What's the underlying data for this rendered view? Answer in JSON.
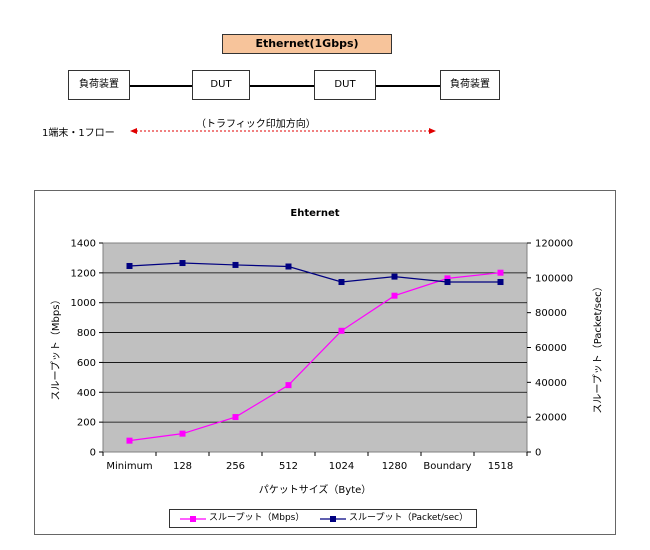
{
  "diagram": {
    "title": "Ethernet(1Gbps)",
    "nodes": [
      "負荷装置",
      "DUT",
      "DUT",
      "負荷装置"
    ],
    "direction_label": "（トラフィック印加方向）",
    "flow_label": "1端末・1フロー",
    "colors": {
      "title_fill": "#f7c49b",
      "arrow": "#e00000"
    }
  },
  "chart_data": {
    "type": "line",
    "title": "Ehternet",
    "xlabel": "パケットサイズ（Byte）",
    "ylabel": "スループット（Mbps）",
    "y2label": "スループット（Packet/sec）",
    "categories": [
      "Minimum",
      "128",
      "256",
      "512",
      "1024",
      "1280",
      "Boundary",
      "1518"
    ],
    "ylim": [
      0,
      1400
    ],
    "y_ticks": [
      "0",
      "200",
      "400",
      "600",
      "800",
      "1000",
      "1200",
      "1400"
    ],
    "y2lim": [
      0,
      120000
    ],
    "y2_ticks": [
      "0",
      "20000",
      "40000",
      "60000",
      "80000",
      "100000",
      "120000"
    ],
    "grid": "horizontal",
    "plot_background": "#c0c0c0",
    "legend_position": "bottom",
    "series": [
      {
        "name": "スループット（Mbps）",
        "axis": "left",
        "color": "#ff00ff",
        "values": [
          76,
          123,
          234,
          448,
          812,
          1047,
          1163,
          1201
        ]
      },
      {
        "name": "スループット（Packet/sec）",
        "axis": "right",
        "color": "#000080",
        "values": [
          106800,
          108500,
          107400,
          106500,
          97600,
          100700,
          97600,
          97600
        ]
      }
    ]
  }
}
